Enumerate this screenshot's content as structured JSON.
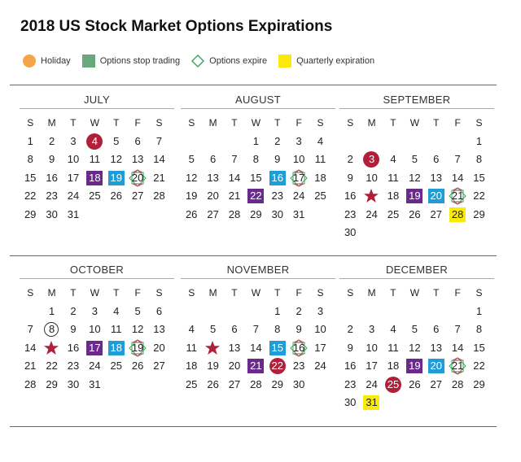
{
  "title": "2018 US Stock Market Options Expirations",
  "legend": [
    {
      "label": "Holiday",
      "icon": "orange-circle-icon",
      "color": "#f6a546"
    },
    {
      "label": "Options stop trading",
      "icon": "green-square-icon",
      "color": "#6aa67e"
    },
    {
      "label": "Options expire",
      "icon": "diamond-outline-icon",
      "color": "#3aa35a"
    },
    {
      "label": "Quarterly expiration",
      "icon": "yellow-square-icon",
      "color": "#f9ea08"
    }
  ],
  "weekdays": [
    "S",
    "M",
    "T",
    "W",
    "T",
    "F",
    "S"
  ],
  "colors": {
    "holiday": "#b0203a",
    "stop_trading": "#6a2a8c",
    "expire": "#1d9ed8",
    "quarterly": "#f9ea08"
  },
  "months": [
    {
      "name": "JULY",
      "start": 0,
      "days": 31,
      "marks": {
        "4": "holiday",
        "18": "stop",
        "19": "exp",
        "20": "octo"
      }
    },
    {
      "name": "AUGUST",
      "start": 3,
      "days": 31,
      "marks": {
        "16": "exp",
        "17": "octo",
        "22": "stop"
      }
    },
    {
      "name": "SEPTEMBER",
      "start": 6,
      "days": 30,
      "marks": {
        "3": "holiday",
        "17": "star",
        "19": "stop",
        "20": "exp",
        "21": "octo",
        "28": "quarter"
      }
    },
    {
      "name": "OCTOBER",
      "start": 1,
      "days": 31,
      "marks": {
        "8": "circle",
        "15": "star",
        "17": "stop",
        "18": "exp",
        "19": "octo"
      }
    },
    {
      "name": "NOVEMBER",
      "start": 4,
      "days": 30,
      "marks": {
        "12": "star",
        "15": "exp",
        "16": "octo",
        "21": "stop",
        "22": "holiday"
      }
    },
    {
      "name": "DECEMBER",
      "start": 6,
      "days": 31,
      "marks": {
        "19": "stop",
        "20": "exp",
        "21": "octo",
        "25": "holiday",
        "31": "quarter"
      }
    }
  ]
}
